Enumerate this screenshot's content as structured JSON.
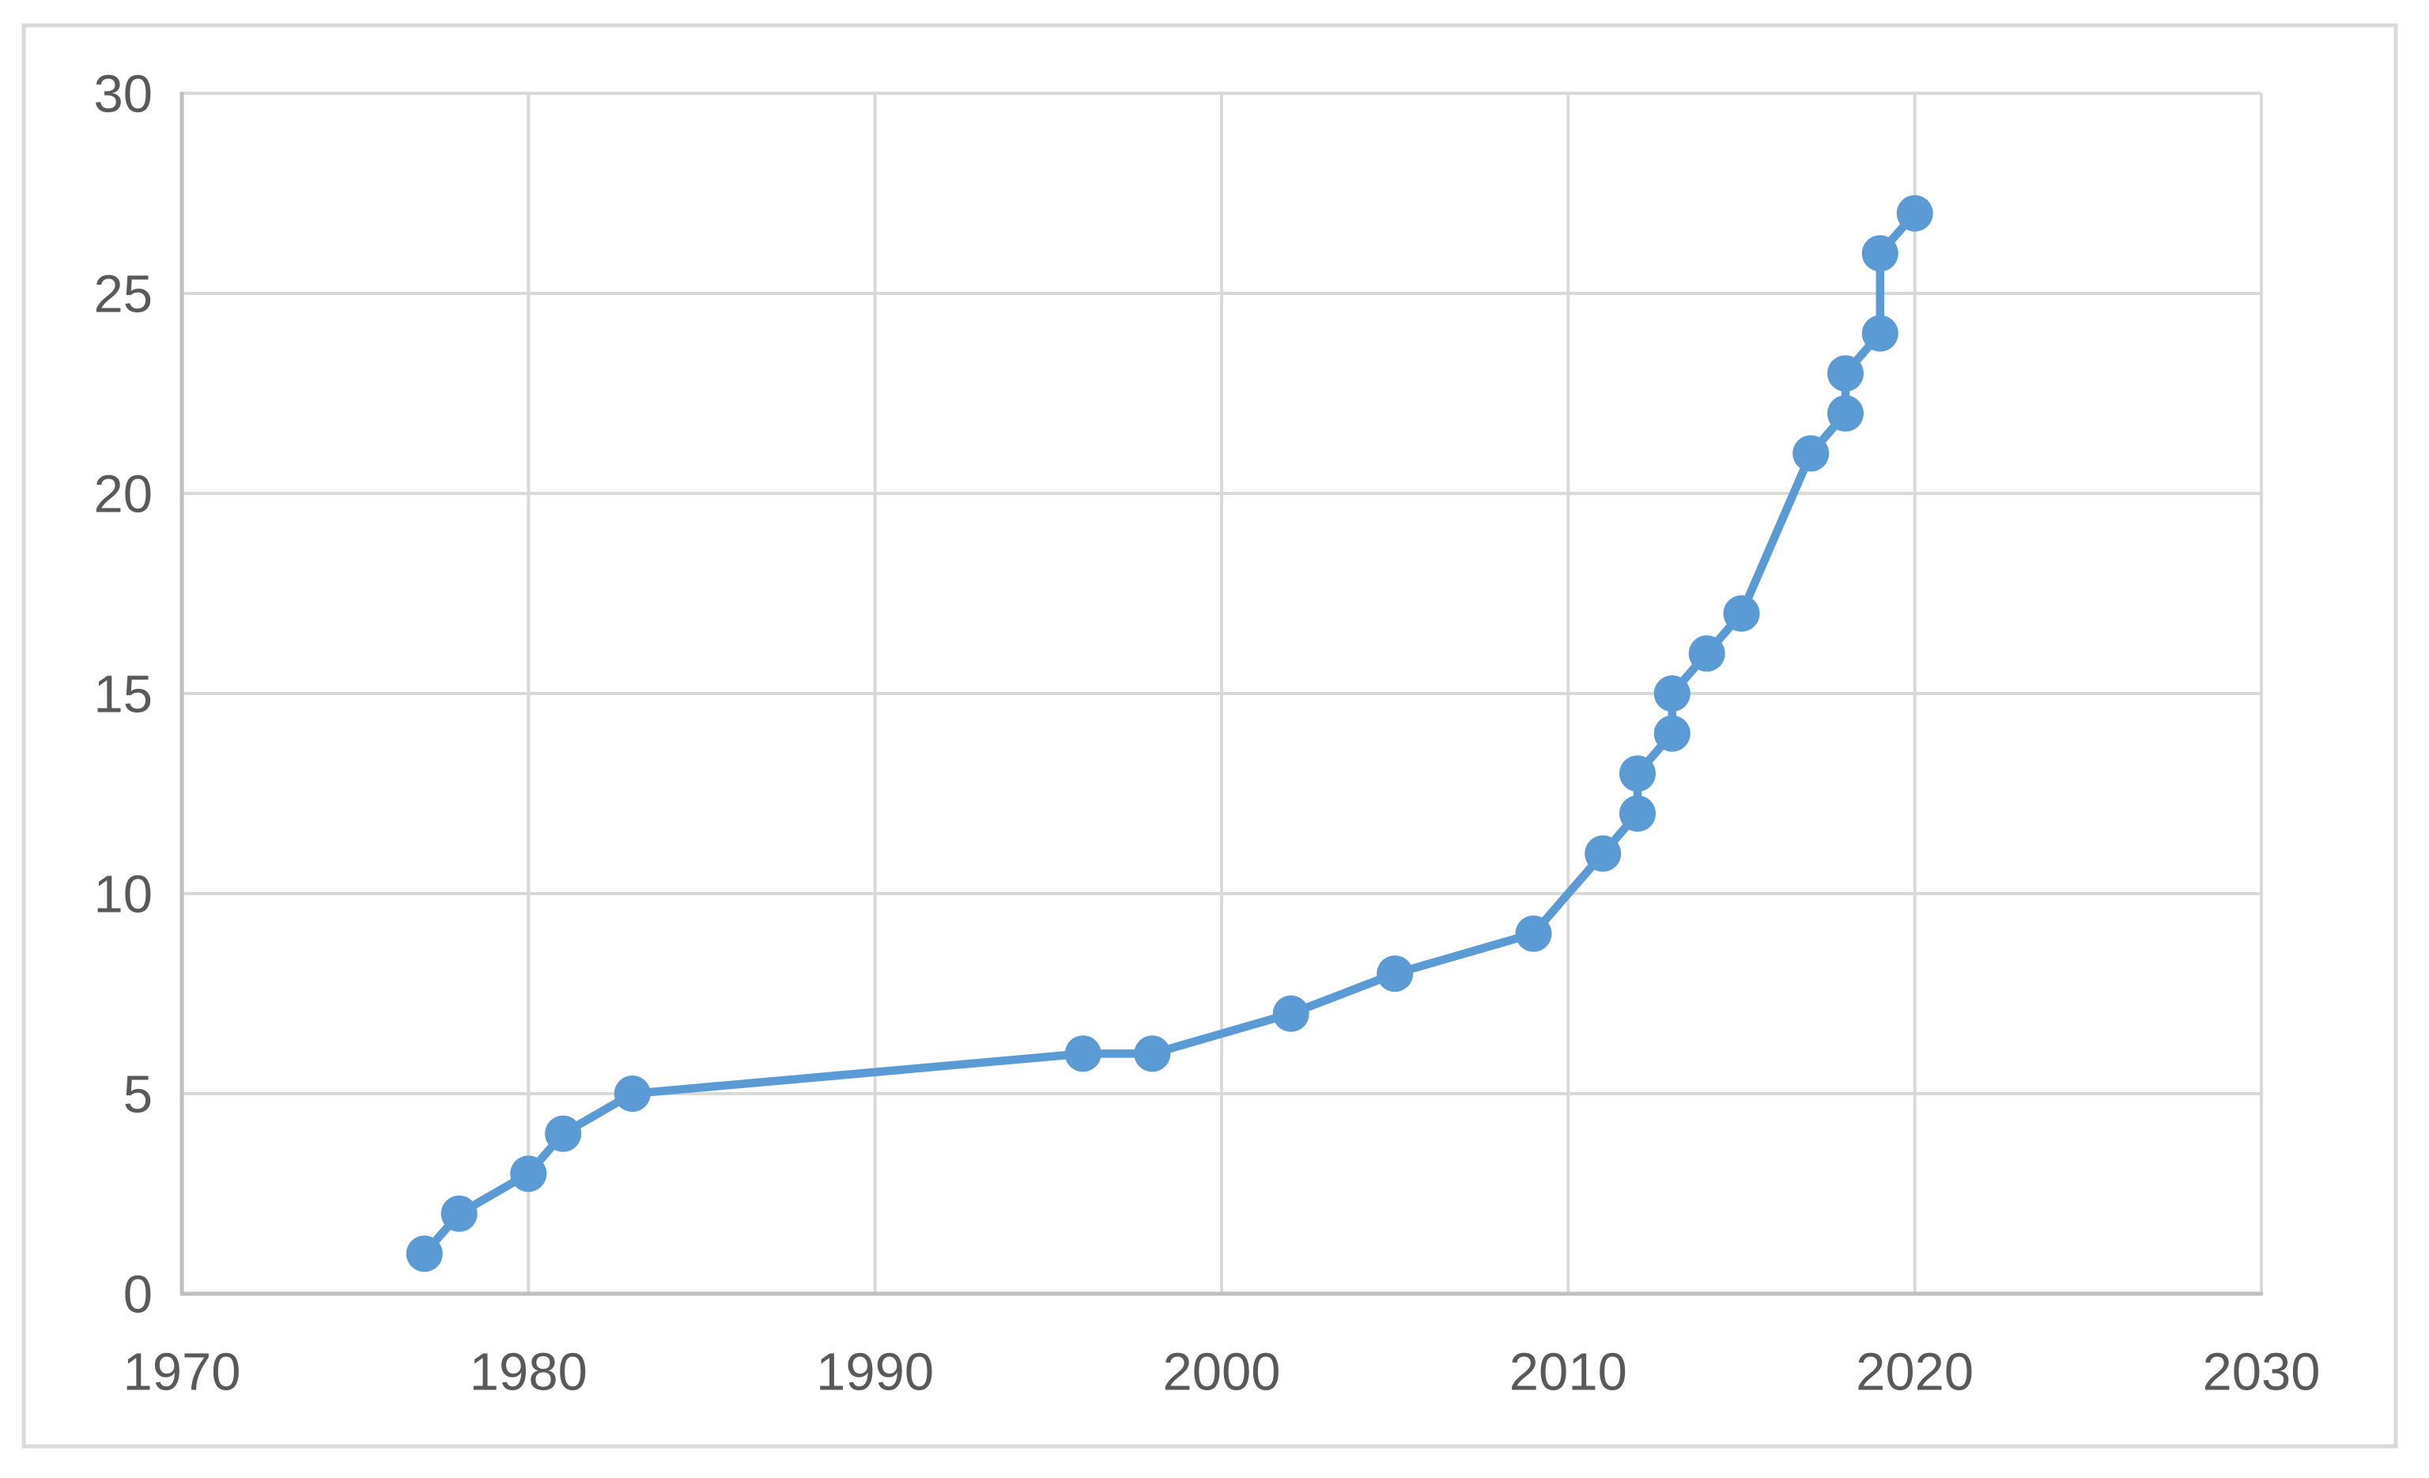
{
  "figure": {
    "background_color": "#ffffff",
    "border_color": "#d9d9d9"
  },
  "chart_data": {
    "type": "line",
    "title": "",
    "xlabel": "",
    "ylabel": "",
    "xlim": [
      1970,
      2030
    ],
    "ylim": [
      0,
      30
    ],
    "x_ticks": [
      "1970",
      "1980",
      "1990",
      "2000",
      "2010",
      "2020",
      "2030"
    ],
    "y_ticks": [
      "0",
      "5",
      "10",
      "15",
      "20",
      "25",
      "30"
    ],
    "grid": true,
    "legend": "none",
    "gridline_color": "#d9d9d9",
    "axis_line_color": "#bfbfbf",
    "tick_label_color": "#595959",
    "series": [
      {
        "color": "#5b9bd5",
        "marker": "circle",
        "points": [
          [
            1977,
            1
          ],
          [
            1978,
            2
          ],
          [
            1980,
            3
          ],
          [
            1981,
            4
          ],
          [
            1983,
            5
          ],
          [
            1996,
            6
          ],
          [
            1998,
            6
          ],
          [
            2002,
            7
          ],
          [
            2005,
            8
          ],
          [
            2009,
            9
          ],
          [
            2011,
            11
          ],
          [
            2012,
            12
          ],
          [
            2012,
            13
          ],
          [
            2013,
            14
          ],
          [
            2013,
            15
          ],
          [
            2014,
            16
          ],
          [
            2015,
            17
          ],
          [
            2017,
            21
          ],
          [
            2018,
            22
          ],
          [
            2018,
            23
          ],
          [
            2019,
            24
          ],
          [
            2019,
            26
          ],
          [
            2020,
            27
          ]
        ]
      }
    ]
  }
}
